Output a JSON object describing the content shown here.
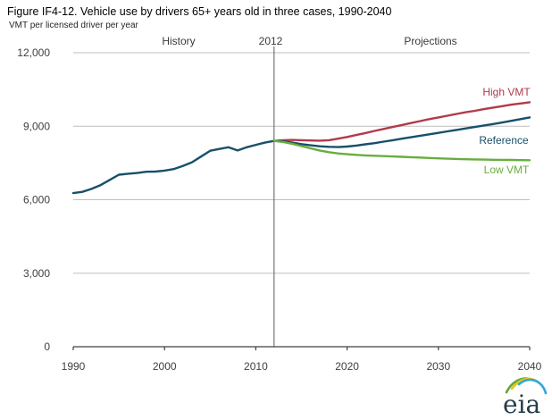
{
  "header": {
    "title": "Figure IF4-12. Vehicle use by drivers 65+ years old in three cases, 1990-2040",
    "subtitle": "VMT per licensed driver  per year"
  },
  "chart_data": {
    "type": "line",
    "title": "Figure IF4-12. Vehicle use by drivers 65+ years old in three cases, 1990-2040",
    "xlabel": "",
    "ylabel": "VMT per licensed driver per year",
    "xlim": [
      1990,
      2040
    ],
    "ylim": [
      0,
      12000
    ],
    "grid": "horizontal",
    "legend_position": "inline-right",
    "annotations": [
      {
        "text": "History"
      },
      {
        "text": "2012"
      },
      {
        "text": "Projections"
      }
    ],
    "divider_year": 2012,
    "x_ticks": [
      1990,
      2000,
      2010,
      2020,
      2030,
      2040
    ],
    "x_tick_labels": [
      "1990",
      "2000",
      "2010",
      "2020",
      "2030",
      "2040"
    ],
    "y_ticks": [
      0,
      3000,
      6000,
      9000,
      12000
    ],
    "y_tick_labels": [
      "0",
      "3,000",
      "6,000",
      "9,000",
      "12,000"
    ],
    "series": [
      {
        "name": "History",
        "label": "",
        "color": "#17506a",
        "x": [
          1990,
          1991,
          1992,
          1993,
          1994,
          1995,
          1996,
          1997,
          1998,
          1999,
          2000,
          2001,
          2002,
          2003,
          2004,
          2005,
          2006,
          2007,
          2008,
          2009,
          2010,
          2011,
          2012
        ],
        "values": [
          6270,
          6320,
          6440,
          6600,
          6810,
          7020,
          7060,
          7090,
          7140,
          7150,
          7190,
          7250,
          7380,
          7530,
          7760,
          8000,
          8070,
          8140,
          8010,
          8140,
          8240,
          8330,
          8400
        ]
      },
      {
        "name": "High VMT",
        "label": "High VMT",
        "color": "#b13a4b",
        "x": [
          2012,
          2013,
          2014,
          2015,
          2016,
          2017,
          2018,
          2019,
          2020,
          2021,
          2022,
          2023,
          2024,
          2025,
          2026,
          2027,
          2028,
          2029,
          2030,
          2031,
          2032,
          2033,
          2034,
          2035,
          2036,
          2037,
          2038,
          2039,
          2040
        ],
        "values": [
          8400,
          8430,
          8440,
          8430,
          8420,
          8410,
          8430,
          8490,
          8560,
          8640,
          8720,
          8810,
          8890,
          8970,
          9050,
          9130,
          9210,
          9290,
          9360,
          9430,
          9500,
          9570,
          9630,
          9700,
          9760,
          9820,
          9880,
          9930,
          9980
        ]
      },
      {
        "name": "Reference",
        "label": "Reference",
        "color": "#17506a",
        "x": [
          2012,
          2013,
          2014,
          2015,
          2016,
          2017,
          2018,
          2019,
          2020,
          2021,
          2022,
          2023,
          2024,
          2025,
          2026,
          2027,
          2028,
          2029,
          2030,
          2031,
          2032,
          2033,
          2034,
          2035,
          2036,
          2037,
          2038,
          2039,
          2040
        ],
        "values": [
          8400,
          8380,
          8330,
          8270,
          8220,
          8180,
          8160,
          8150,
          8170,
          8210,
          8260,
          8310,
          8370,
          8430,
          8490,
          8550,
          8610,
          8670,
          8730,
          8790,
          8850,
          8910,
          8970,
          9030,
          9090,
          9150,
          9220,
          9290,
          9360
        ]
      },
      {
        "name": "Low VMT",
        "label": "Low VMT",
        "color": "#67ae3e",
        "x": [
          2012,
          2013,
          2014,
          2015,
          2016,
          2017,
          2018,
          2019,
          2020,
          2021,
          2022,
          2023,
          2024,
          2025,
          2026,
          2027,
          2028,
          2029,
          2030,
          2031,
          2032,
          2033,
          2034,
          2035,
          2036,
          2037,
          2038,
          2039,
          2040
        ],
        "values": [
          8400,
          8355,
          8280,
          8190,
          8100,
          8010,
          7940,
          7890,
          7855,
          7830,
          7810,
          7795,
          7780,
          7765,
          7750,
          7735,
          7720,
          7705,
          7690,
          7675,
          7663,
          7653,
          7645,
          7638,
          7632,
          7627,
          7622,
          7617,
          7613
        ]
      }
    ]
  },
  "logo": {
    "text": "eia",
    "text_color": "#253c4b",
    "colors": {
      "green": "#5fa73c",
      "yellow": "#e8c51d",
      "blue": "#2fa8dc"
    }
  }
}
